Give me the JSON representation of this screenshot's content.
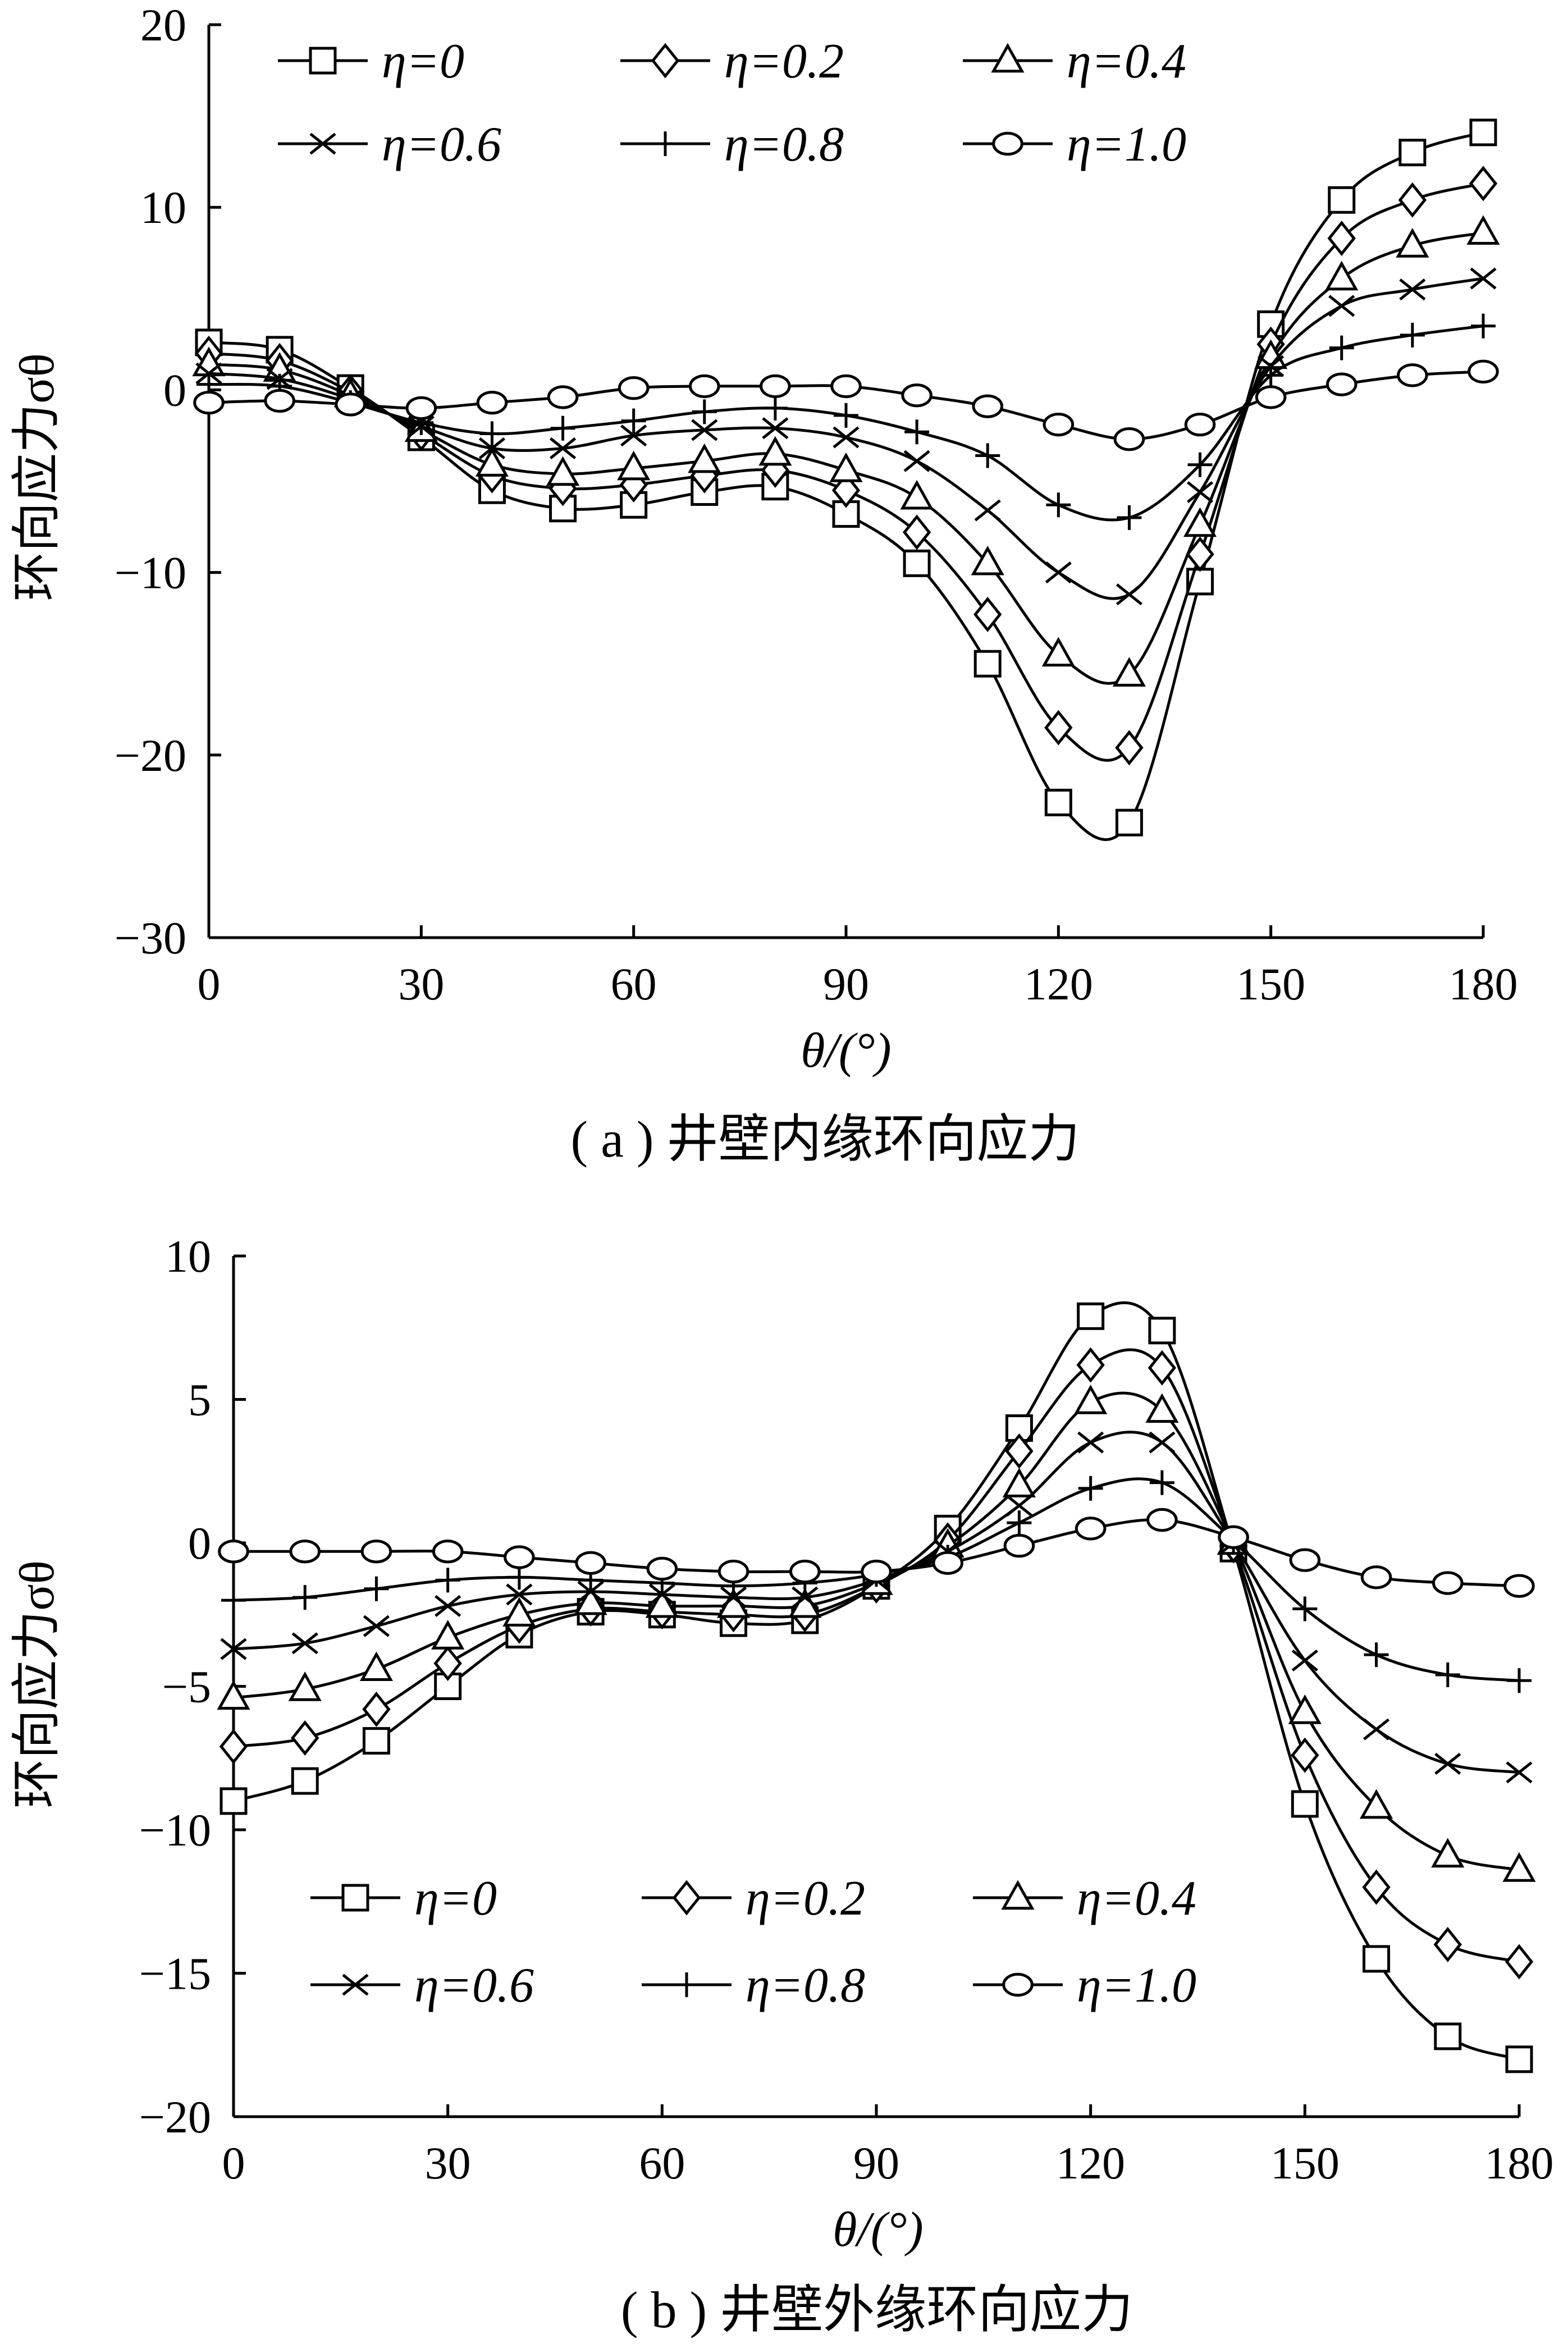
{
  "chart_data": [
    {
      "type": "line",
      "caption": "( a ) 井壁内缘环向应力",
      "xlabel": "θ/(°)",
      "ylabel": "环向应力σθ",
      "xlim": [
        0,
        180
      ],
      "ylim": [
        -30,
        20
      ],
      "xticks": [
        0,
        30,
        60,
        90,
        120,
        150,
        180
      ],
      "yticks": [
        20,
        10,
        0,
        -10,
        -20,
        -30
      ],
      "ytick_labels": [
        "20",
        "10",
        "0",
        "−10",
        "−20",
        "−30"
      ],
      "grid": false,
      "legend_position": "top",
      "x": [
        0,
        10,
        20,
        30,
        40,
        50,
        60,
        70,
        80,
        90,
        100,
        110,
        120,
        130,
        140,
        150,
        160,
        170,
        180
      ],
      "series": [
        {
          "name": "η=0",
          "marker": "square",
          "values": [
            2.6,
            2.2,
            0.1,
            -2.6,
            -5.5,
            -6.5,
            -6.3,
            -5.6,
            -5.3,
            -6.8,
            -9.5,
            -15.0,
            -22.6,
            -23.7,
            -10.5,
            3.6,
            10.4,
            13.0,
            14.1
          ]
        },
        {
          "name": "η=0.2",
          "marker": "diamond",
          "values": [
            2.0,
            1.6,
            -0.1,
            -2.4,
            -4.7,
            -5.4,
            -5.2,
            -4.7,
            -4.4,
            -5.5,
            -7.8,
            -12.3,
            -18.5,
            -19.6,
            -9.0,
            2.5,
            8.3,
            10.4,
            11.3
          ]
        },
        {
          "name": "η=0.4",
          "marker": "triangle",
          "values": [
            1.4,
            1.1,
            -0.3,
            -2.2,
            -4.1,
            -4.6,
            -4.3,
            -3.9,
            -3.5,
            -4.4,
            -5.9,
            -9.5,
            -14.5,
            -15.6,
            -7.4,
            1.8,
            6.1,
            7.9,
            8.6
          ]
        },
        {
          "name": "η=0.6",
          "marker": "x",
          "values": [
            0.9,
            0.6,
            -0.5,
            -2.0,
            -3.2,
            -3.2,
            -2.5,
            -2.2,
            -2.1,
            -2.6,
            -3.9,
            -6.6,
            -10.0,
            -11.2,
            -5.6,
            1.3,
            4.6,
            5.5,
            6.1
          ]
        },
        {
          "name": "η=0.8",
          "marker": "plus",
          "values": [
            0.3,
            0.2,
            -0.7,
            -1.8,
            -2.4,
            -2.1,
            -1.7,
            -1.2,
            -1.0,
            -1.4,
            -2.3,
            -3.6,
            -6.3,
            -7.0,
            -4.1,
            0.8,
            2.3,
            3.0,
            3.5
          ]
        },
        {
          "name": "η=1.0",
          "marker": "circle",
          "values": [
            -0.7,
            -0.6,
            -0.8,
            -1.0,
            -0.7,
            -0.4,
            0.1,
            0.2,
            0.2,
            0.2,
            -0.3,
            -0.9,
            -1.9,
            -2.7,
            -1.9,
            -0.4,
            0.3,
            0.8,
            1.0
          ]
        }
      ]
    },
    {
      "type": "line",
      "caption": "( b ) 井壁外缘环向应力",
      "xlabel": "θ/(°)",
      "ylabel": "环向应力σθ",
      "xlim": [
        0,
        180
      ],
      "ylim": [
        -20,
        10
      ],
      "xticks": [
        0,
        30,
        60,
        90,
        120,
        150,
        180
      ],
      "yticks": [
        10,
        5,
        0,
        -5,
        -10,
        -15,
        -20
      ],
      "ytick_labels": [
        "10",
        "5",
        "0",
        "−5",
        "−10",
        "−15",
        "−20"
      ],
      "grid": false,
      "legend_position": "bottom-left",
      "x": [
        0,
        10,
        20,
        30,
        40,
        50,
        60,
        70,
        80,
        90,
        100,
        110,
        120,
        130,
        140,
        150,
        160,
        170,
        180
      ],
      "series": [
        {
          "name": "η=0",
          "marker": "square",
          "values": [
            -9.0,
            -8.3,
            -6.9,
            -5.0,
            -3.2,
            -2.4,
            -2.5,
            -2.8,
            -2.7,
            -1.5,
            0.5,
            4.0,
            7.9,
            7.4,
            -0.2,
            -9.1,
            -14.5,
            -17.2,
            -18.0
          ]
        },
        {
          "name": "η=0.2",
          "marker": "diamond",
          "values": [
            -7.1,
            -6.8,
            -5.8,
            -4.2,
            -2.9,
            -2.3,
            -2.4,
            -2.5,
            -2.5,
            -1.5,
            0.1,
            3.2,
            6.2,
            6.1,
            -0.1,
            -7.4,
            -12.0,
            -14.0,
            -14.6
          ]
        },
        {
          "name": "η=0.4",
          "marker": "triangle",
          "values": [
            -5.4,
            -5.1,
            -4.4,
            -3.3,
            -2.5,
            -2.1,
            -2.2,
            -2.2,
            -2.2,
            -1.4,
            -0.1,
            2.0,
            4.9,
            4.6,
            0.0,
            -5.9,
            -9.2,
            -10.9,
            -11.4
          ]
        },
        {
          "name": "η=0.6",
          "marker": "x",
          "values": [
            -3.7,
            -3.5,
            -2.9,
            -2.2,
            -1.8,
            -1.7,
            -1.8,
            -1.9,
            -1.9,
            -1.3,
            -0.3,
            1.3,
            3.5,
            3.5,
            0.0,
            -4.1,
            -6.5,
            -7.7,
            -8.0
          ]
        },
        {
          "name": "η=0.8",
          "marker": "plus",
          "values": [
            -2.0,
            -1.9,
            -1.6,
            -1.3,
            -1.2,
            -1.3,
            -1.4,
            -1.5,
            -1.4,
            -1.1,
            -0.5,
            0.7,
            1.9,
            2.1,
            0.1,
            -2.3,
            -3.9,
            -4.6,
            -4.8
          ]
        },
        {
          "name": "η=1.0",
          "marker": "circle",
          "values": [
            -0.3,
            -0.3,
            -0.3,
            -0.3,
            -0.5,
            -0.7,
            -0.9,
            -1.0,
            -1.0,
            -1.0,
            -0.7,
            -0.1,
            0.5,
            0.8,
            0.2,
            -0.6,
            -1.2,
            -1.4,
            -1.5
          ]
        }
      ]
    }
  ]
}
